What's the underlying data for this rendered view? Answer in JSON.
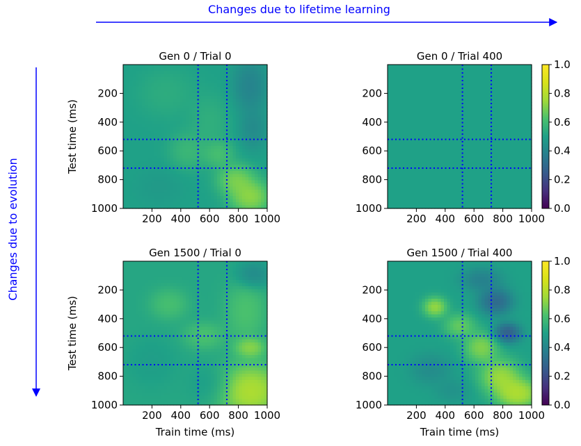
{
  "annotations": {
    "top": "Changes due to lifetime learning",
    "left": "Changes due to evolution",
    "color": "#0000ff"
  },
  "chart_data": [
    {
      "type": "heatmap",
      "title": "Gen 0 / Trial 0",
      "xlabel": "",
      "ylabel": "Test time (ms)",
      "x_range": [
        0,
        1000
      ],
      "y_range": [
        0,
        1000
      ],
      "x_ticks": [
        "200",
        "400",
        "600",
        "800",
        "1000"
      ],
      "y_ticks": [
        "200",
        "400",
        "600",
        "800",
        "1000"
      ],
      "dotted_lines_ms": [
        520,
        720
      ],
      "colormap": "viridis",
      "vmin": 0.0,
      "vmax": 1.0,
      "colorbar": false,
      "blobs": [
        {
          "x": 500,
          "y": 500,
          "value": 0.5,
          "sx": 1500,
          "sy": 1500
        },
        {
          "x": 300,
          "y": 200,
          "value": 0.58,
          "sx": 160,
          "sy": 140
        },
        {
          "x": 450,
          "y": 600,
          "value": 0.66,
          "sx": 110,
          "sy": 110
        },
        {
          "x": 600,
          "y": 400,
          "value": 0.6,
          "sx": 120,
          "sy": 160
        },
        {
          "x": 880,
          "y": 150,
          "value": 0.3,
          "sx": 100,
          "sy": 160
        },
        {
          "x": 900,
          "y": 450,
          "value": 0.35,
          "sx": 80,
          "sy": 120
        },
        {
          "x": 660,
          "y": 620,
          "value": 0.72,
          "sx": 90,
          "sy": 80
        },
        {
          "x": 780,
          "y": 800,
          "value": 0.85,
          "sx": 110,
          "sy": 90
        },
        {
          "x": 880,
          "y": 920,
          "value": 0.9,
          "sx": 120,
          "sy": 100
        },
        {
          "x": 250,
          "y": 850,
          "value": 0.45,
          "sx": 140,
          "sy": 110
        }
      ]
    },
    {
      "type": "heatmap",
      "title": "Gen 0 / Trial 400",
      "xlabel": "",
      "ylabel": "",
      "x_range": [
        0,
        1000
      ],
      "y_range": [
        0,
        1000
      ],
      "x_ticks": [
        "200",
        "400",
        "600",
        "800",
        "1000"
      ],
      "y_ticks": [
        "200",
        "400",
        "600",
        "800",
        "1000"
      ],
      "dotted_lines_ms": [
        520,
        720
      ],
      "colormap": "viridis",
      "vmin": 0.0,
      "vmax": 1.0,
      "colorbar": true,
      "colorbar_ticks": [
        "0.0",
        "0.2",
        "0.4",
        "0.6",
        "0.8",
        "1.0"
      ],
      "blobs": [
        {
          "x": 500,
          "y": 500,
          "value": 0.5,
          "sx": 5000,
          "sy": 5000
        }
      ]
    },
    {
      "type": "heatmap",
      "title": "Gen 1500 / Trial 0",
      "xlabel": "Train time (ms)",
      "ylabel": "Test time (ms)",
      "x_range": [
        0,
        1000
      ],
      "y_range": [
        0,
        1000
      ],
      "x_ticks": [
        "200",
        "400",
        "600",
        "800",
        "1000"
      ],
      "y_ticks": [
        "200",
        "400",
        "600",
        "800",
        "1000"
      ],
      "dotted_lines_ms": [
        520,
        720
      ],
      "colormap": "viridis",
      "vmin": 0.0,
      "vmax": 1.0,
      "colorbar": false,
      "blobs": [
        {
          "x": 500,
          "y": 500,
          "value": 0.52,
          "sx": 1500,
          "sy": 1500
        },
        {
          "x": 320,
          "y": 300,
          "value": 0.7,
          "sx": 110,
          "sy": 90
        },
        {
          "x": 560,
          "y": 520,
          "value": 0.72,
          "sx": 120,
          "sy": 80
        },
        {
          "x": 850,
          "y": 350,
          "value": 0.72,
          "sx": 120,
          "sy": 180
        },
        {
          "x": 900,
          "y": 100,
          "value": 0.32,
          "sx": 100,
          "sy": 80
        },
        {
          "x": 200,
          "y": 700,
          "value": 0.46,
          "sx": 140,
          "sy": 140
        },
        {
          "x": 600,
          "y": 850,
          "value": 0.46,
          "sx": 120,
          "sy": 100
        },
        {
          "x": 880,
          "y": 600,
          "value": 0.88,
          "sx": 90,
          "sy": 60
        },
        {
          "x": 880,
          "y": 900,
          "value": 1.0,
          "sx": 180,
          "sy": 160
        }
      ]
    },
    {
      "type": "heatmap",
      "title": "Gen 1500 / Trial 400",
      "xlabel": "Train time (ms)",
      "ylabel": "",
      "x_range": [
        0,
        1000
      ],
      "y_range": [
        0,
        1000
      ],
      "x_ticks": [
        "200",
        "400",
        "600",
        "800",
        "1000"
      ],
      "y_ticks": [
        "200",
        "400",
        "600",
        "800",
        "1000"
      ],
      "dotted_lines_ms": [
        520,
        720
      ],
      "colormap": "viridis",
      "vmin": 0.0,
      "vmax": 1.0,
      "colorbar": true,
      "colorbar_ticks": [
        "0.0",
        "0.2",
        "0.4",
        "0.6",
        "0.8",
        "1.0"
      ],
      "blobs": [
        {
          "x": 500,
          "y": 500,
          "value": 0.5,
          "sx": 1500,
          "sy": 1500
        },
        {
          "x": 330,
          "y": 320,
          "value": 0.95,
          "sx": 70,
          "sy": 60
        },
        {
          "x": 500,
          "y": 450,
          "value": 0.82,
          "sx": 90,
          "sy": 70
        },
        {
          "x": 750,
          "y": 280,
          "value": 0.12,
          "sx": 100,
          "sy": 80
        },
        {
          "x": 830,
          "y": 500,
          "value": 0.05,
          "sx": 80,
          "sy": 60
        },
        {
          "x": 650,
          "y": 600,
          "value": 0.9,
          "sx": 100,
          "sy": 90
        },
        {
          "x": 780,
          "y": 800,
          "value": 0.95,
          "sx": 120,
          "sy": 100
        },
        {
          "x": 900,
          "y": 920,
          "value": 1.0,
          "sx": 130,
          "sy": 90
        },
        {
          "x": 650,
          "y": 130,
          "value": 0.28,
          "sx": 120,
          "sy": 70
        },
        {
          "x": 300,
          "y": 750,
          "value": 0.35,
          "sx": 120,
          "sy": 90
        },
        {
          "x": 450,
          "y": 900,
          "value": 0.4,
          "sx": 100,
          "sy": 70
        }
      ]
    }
  ]
}
